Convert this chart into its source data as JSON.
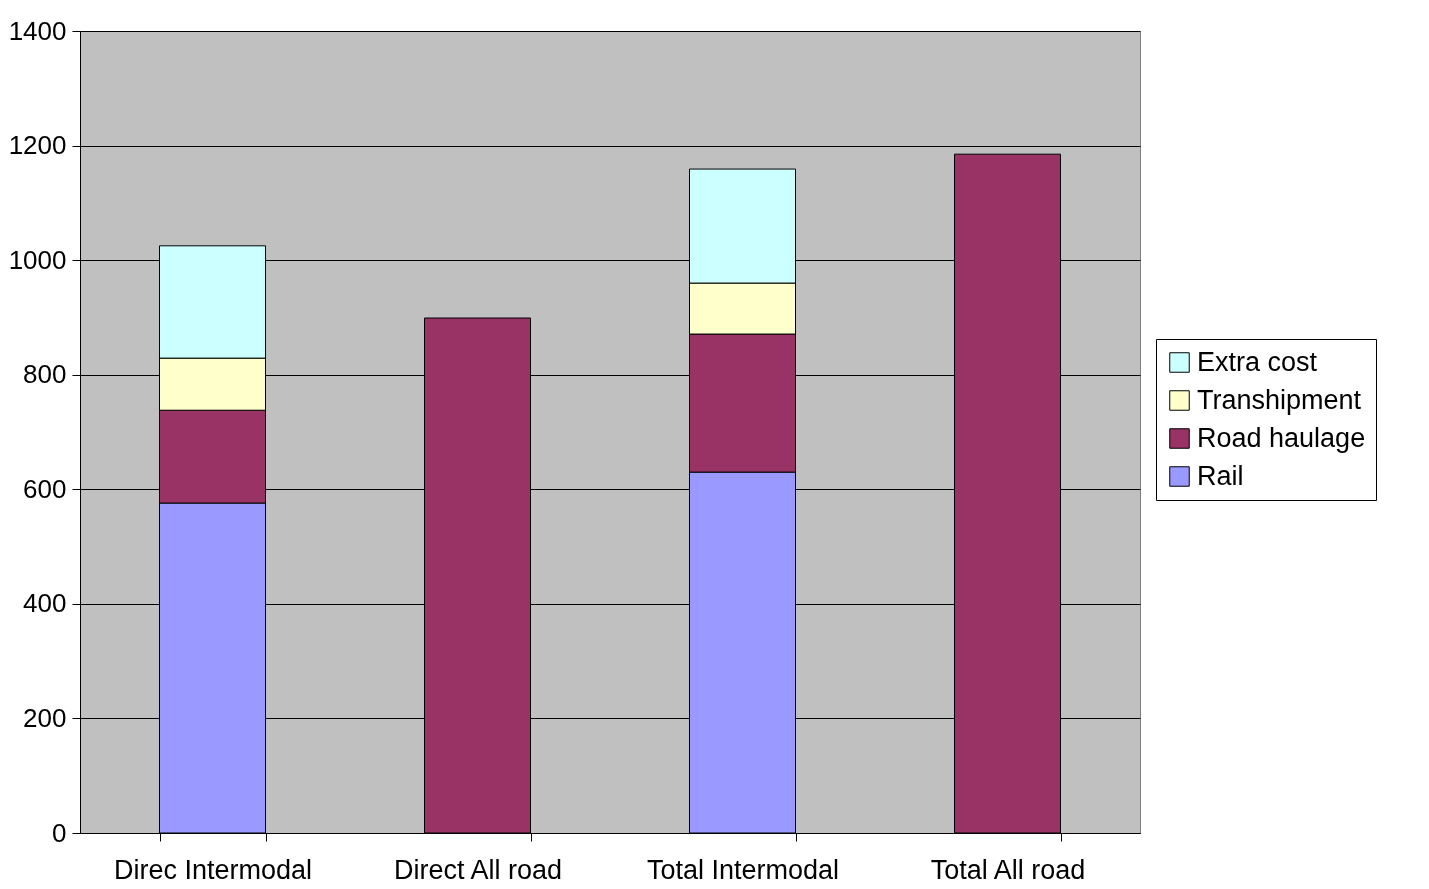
{
  "chart_data": {
    "type": "bar",
    "stacked": true,
    "categories": [
      "Direc Intermodal",
      "Direct All road",
      "Total Intermodal",
      "Total All road"
    ],
    "series": [
      {
        "name": "Rail",
        "color": "#9999ff",
        "values": [
          576,
          null,
          630,
          null
        ]
      },
      {
        "name": "Road haulage",
        "color": "#993366",
        "values": [
          162,
          899,
          241,
          1185
        ]
      },
      {
        "name": "Transhipment",
        "color": "#ffffcc",
        "values": [
          91,
          null,
          89,
          null
        ]
      },
      {
        "name": "Extra cost",
        "color": "#ccffff",
        "values": [
          196,
          null,
          199,
          null
        ]
      }
    ],
    "ylim": [
      0,
      1400
    ],
    "yticks": [
      0,
      200,
      400,
      600,
      800,
      {
        "value": 1000,
        "label": "1000"
      },
      {
        "value": 1200,
        "label": "1200"
      },
      {
        "value": 1400,
        "label": "1400"
      }
    ],
    "grid": "y",
    "legend": "right"
  }
}
